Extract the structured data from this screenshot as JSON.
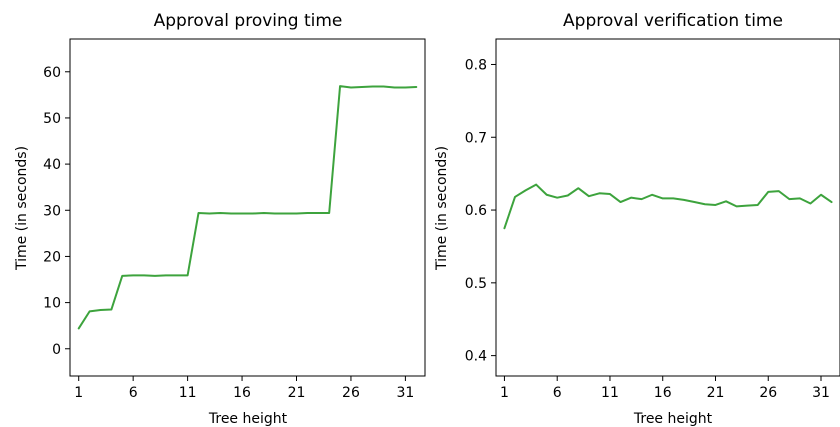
{
  "colors": {
    "series": "#3da33d"
  },
  "chart_data": [
    {
      "type": "line",
      "title": "Approval proving time",
      "xlabel": "Tree height",
      "ylabel": "Time (in seconds)",
      "xlim": [
        0.2,
        32.8
      ],
      "ylim": [
        -5.9,
        67.1
      ],
      "xticks": [
        1,
        6,
        11,
        16,
        21,
        26,
        31
      ],
      "xtick_labels": [
        "1",
        "6",
        "11",
        "16",
        "21",
        "26",
        "31"
      ],
      "yticks": [
        0,
        10,
        20,
        30,
        40,
        50,
        60
      ],
      "ytick_labels": [
        "0",
        "10",
        "20",
        "30",
        "40",
        "50",
        "60"
      ],
      "grid": false,
      "series": [
        {
          "x": [
            1,
            2,
            3,
            4,
            5,
            6,
            7,
            8,
            9,
            10,
            11,
            12,
            13,
            14,
            15,
            16,
            17,
            18,
            19,
            20,
            21,
            22,
            23,
            24,
            25,
            26,
            27,
            28,
            29,
            30,
            31,
            32
          ],
          "values": [
            4.4,
            8.1,
            8.4,
            8.5,
            15.8,
            15.9,
            15.9,
            15.8,
            15.9,
            15.9,
            15.9,
            29.4,
            29.3,
            29.4,
            29.3,
            29.3,
            29.3,
            29.4,
            29.3,
            29.3,
            29.3,
            29.4,
            29.4,
            29.4,
            56.9,
            56.6,
            56.7,
            56.8,
            56.8,
            56.6,
            56.6,
            56.7
          ]
        }
      ]
    },
    {
      "type": "line",
      "title": "Approval verification time",
      "xlabel": "Tree height",
      "ylabel": "Time (in seconds)",
      "xlim": [
        0.2,
        32.8
      ],
      "ylim": [
        0.372,
        0.835
      ],
      "xticks": [
        1,
        6,
        11,
        16,
        21,
        26,
        31
      ],
      "xtick_labels": [
        "1",
        "6",
        "11",
        "16",
        "21",
        "26",
        "31"
      ],
      "yticks": [
        0.4,
        0.5,
        0.6,
        0.7,
        0.8
      ],
      "ytick_labels": [
        "0.4",
        "0.5",
        "0.6",
        "0.7",
        "0.8"
      ],
      "grid": false,
      "series": [
        {
          "x": [
            1,
            2,
            3,
            4,
            5,
            6,
            7,
            8,
            9,
            10,
            11,
            12,
            13,
            14,
            15,
            16,
            17,
            18,
            19,
            20,
            21,
            22,
            23,
            24,
            25,
            26,
            27,
            28,
            29,
            30,
            31,
            32
          ],
          "values": [
            0.575,
            0.618,
            0.627,
            0.635,
            0.621,
            0.617,
            0.62,
            0.63,
            0.619,
            0.623,
            0.622,
            0.611,
            0.617,
            0.615,
            0.621,
            0.616,
            0.616,
            0.614,
            0.611,
            0.608,
            0.607,
            0.612,
            0.605,
            0.606,
            0.607,
            0.625,
            0.626,
            0.615,
            0.616,
            0.609,
            0.621,
            0.611
          ]
        }
      ]
    }
  ]
}
